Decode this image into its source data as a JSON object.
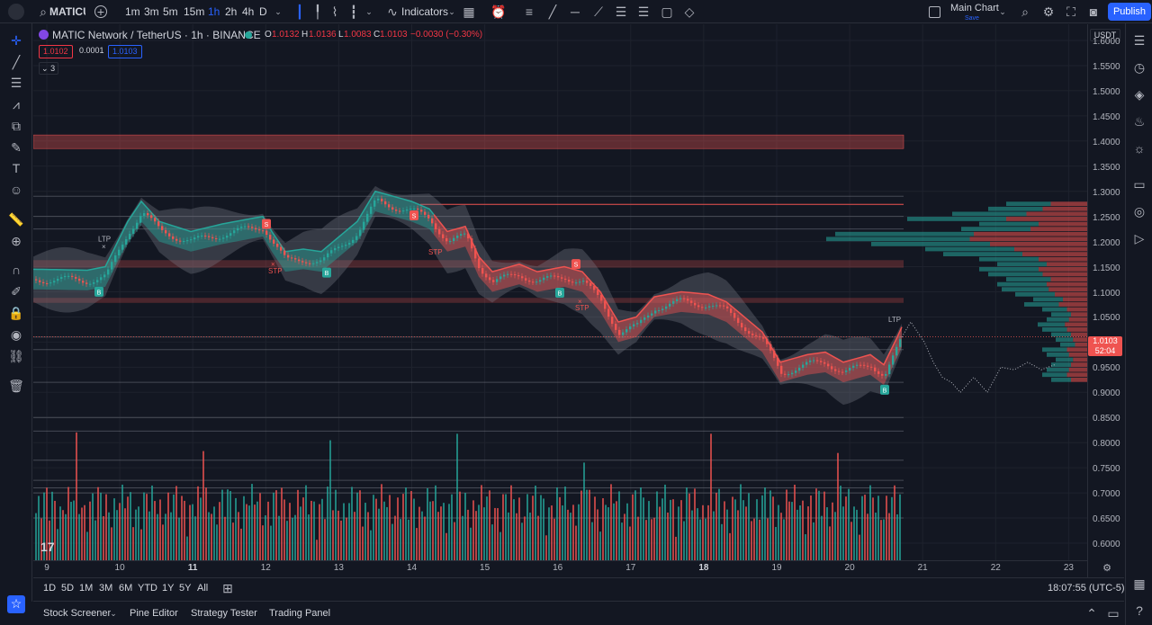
{
  "toolbar": {
    "symbol": "MATICUS",
    "intervals": [
      "1m",
      "3m",
      "5m",
      "15m",
      "1h",
      "2h",
      "4h",
      "D"
    ],
    "active_interval": "1h",
    "indicators_label": "Indicators",
    "layout_name": "Main Chart",
    "layout_sub": "Save",
    "publish_label": "Publish"
  },
  "legend": {
    "title": "MATIC Network / TetherUS · 1h · BINANCE",
    "o_label": "O",
    "o_value": "1.0132",
    "h_label": "H",
    "h_value": "1.0136",
    "l_label": "L",
    "l_value": "1.0083",
    "c_label": "C",
    "c_value": "1.0103",
    "change": "−0.0030 (−0.30%)",
    "bid": "1.0102",
    "spread": "0.0001",
    "ask": "1.0103",
    "collapsed_count": "3"
  },
  "price_axis": {
    "currency": "USDT",
    "labels": [
      "1.6000",
      "1.5500",
      "1.5000",
      "1.4500",
      "1.4000",
      "1.3500",
      "1.3000",
      "1.2500",
      "1.2000",
      "1.1500",
      "1.1000",
      "1.0500",
      "1.0000",
      "0.9500",
      "0.9000",
      "0.8500",
      "0.8000",
      "0.7500",
      "0.7000",
      "0.6500",
      "0.6000"
    ],
    "current_price": "1.0103",
    "countdown": "52:04"
  },
  "time_axis": {
    "labels": [
      "9",
      "10",
      "11",
      "12",
      "13",
      "14",
      "15",
      "16",
      "17",
      "18",
      "19",
      "20",
      "21",
      "22",
      "23"
    ],
    "bold": [
      "11",
      "18"
    ]
  },
  "ranges": [
    "1D",
    "5D",
    "1M",
    "3M",
    "6M",
    "YTD",
    "1Y",
    "5Y",
    "All"
  ],
  "clock": "18:07:55 (UTC-5)",
  "bottom_tabs": [
    "Stock Screener",
    "Pine Editor",
    "Strategy Tester",
    "Trading Panel"
  ],
  "markers": {
    "ltp": "LTP",
    "stp": "STP",
    "buy": "B",
    "sell": "S"
  },
  "colors": {
    "up": "#26a69a",
    "down": "#ef5350",
    "accent": "#2962ff",
    "background": "#131722"
  }
}
